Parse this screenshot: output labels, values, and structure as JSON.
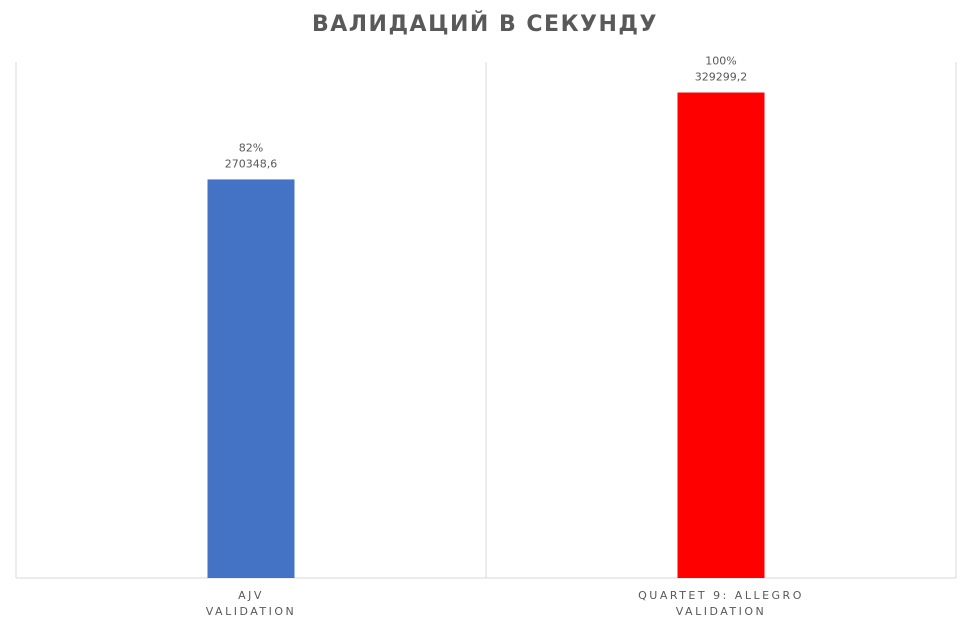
{
  "chart_data": {
    "type": "bar",
    "title": "ВАЛИДАЦИЙ В СЕКУНДУ",
    "categories": [
      [
        "AJV",
        "VALIDATION"
      ],
      [
        "QUARTET 9: ALLEGRO",
        "VALIDATION"
      ]
    ],
    "values": [
      270348.6,
      329299.2
    ],
    "value_labels": [
      "270348,6",
      "329299,2"
    ],
    "percent_values": [
      82,
      100
    ],
    "percent_labels": [
      "82%",
      "100%"
    ],
    "colors": [
      "#4472c4",
      "#ff0000"
    ],
    "ylim": [
      0,
      350000
    ]
  }
}
